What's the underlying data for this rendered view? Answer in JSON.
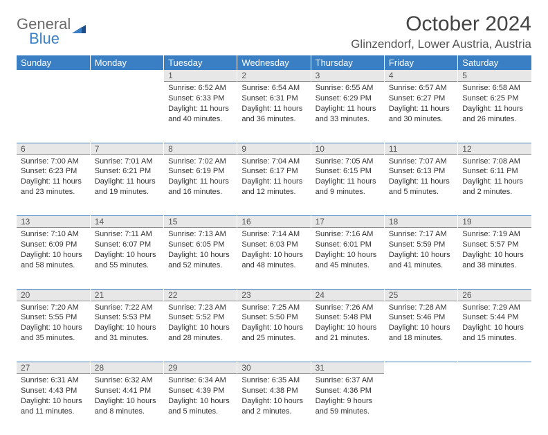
{
  "logo": {
    "general": "General",
    "blue": "Blue"
  },
  "title": "October 2024",
  "location": "Glinzendorf, Lower Austria, Austria",
  "columns": [
    "Sunday",
    "Monday",
    "Tuesday",
    "Wednesday",
    "Thursday",
    "Friday",
    "Saturday"
  ],
  "colors": {
    "header_bg": "#3a7fc4",
    "header_text": "#ffffff",
    "daynum_bg": "#e7e7e7",
    "daynum_border": "#8a8a8a",
    "week_sep": "#3a7fc4",
    "body_text": "#333333"
  },
  "fonts": {
    "title_size": 30,
    "location_size": 17,
    "header_size": 13,
    "daynum_size": 12,
    "cell_size": 11
  },
  "weeks": [
    [
      null,
      null,
      {
        "n": "1",
        "sr": "6:52 AM",
        "ss": "6:33 PM",
        "dl": "11 hours and 40 minutes."
      },
      {
        "n": "2",
        "sr": "6:54 AM",
        "ss": "6:31 PM",
        "dl": "11 hours and 36 minutes."
      },
      {
        "n": "3",
        "sr": "6:55 AM",
        "ss": "6:29 PM",
        "dl": "11 hours and 33 minutes."
      },
      {
        "n": "4",
        "sr": "6:57 AM",
        "ss": "6:27 PM",
        "dl": "11 hours and 30 minutes."
      },
      {
        "n": "5",
        "sr": "6:58 AM",
        "ss": "6:25 PM",
        "dl": "11 hours and 26 minutes."
      }
    ],
    [
      {
        "n": "6",
        "sr": "7:00 AM",
        "ss": "6:23 PM",
        "dl": "11 hours and 23 minutes."
      },
      {
        "n": "7",
        "sr": "7:01 AM",
        "ss": "6:21 PM",
        "dl": "11 hours and 19 minutes."
      },
      {
        "n": "8",
        "sr": "7:02 AM",
        "ss": "6:19 PM",
        "dl": "11 hours and 16 minutes."
      },
      {
        "n": "9",
        "sr": "7:04 AM",
        "ss": "6:17 PM",
        "dl": "11 hours and 12 minutes."
      },
      {
        "n": "10",
        "sr": "7:05 AM",
        "ss": "6:15 PM",
        "dl": "11 hours and 9 minutes."
      },
      {
        "n": "11",
        "sr": "7:07 AM",
        "ss": "6:13 PM",
        "dl": "11 hours and 5 minutes."
      },
      {
        "n": "12",
        "sr": "7:08 AM",
        "ss": "6:11 PM",
        "dl": "11 hours and 2 minutes."
      }
    ],
    [
      {
        "n": "13",
        "sr": "7:10 AM",
        "ss": "6:09 PM",
        "dl": "10 hours and 58 minutes."
      },
      {
        "n": "14",
        "sr": "7:11 AM",
        "ss": "6:07 PM",
        "dl": "10 hours and 55 minutes."
      },
      {
        "n": "15",
        "sr": "7:13 AM",
        "ss": "6:05 PM",
        "dl": "10 hours and 52 minutes."
      },
      {
        "n": "16",
        "sr": "7:14 AM",
        "ss": "6:03 PM",
        "dl": "10 hours and 48 minutes."
      },
      {
        "n": "17",
        "sr": "7:16 AM",
        "ss": "6:01 PM",
        "dl": "10 hours and 45 minutes."
      },
      {
        "n": "18",
        "sr": "7:17 AM",
        "ss": "5:59 PM",
        "dl": "10 hours and 41 minutes."
      },
      {
        "n": "19",
        "sr": "7:19 AM",
        "ss": "5:57 PM",
        "dl": "10 hours and 38 minutes."
      }
    ],
    [
      {
        "n": "20",
        "sr": "7:20 AM",
        "ss": "5:55 PM",
        "dl": "10 hours and 35 minutes."
      },
      {
        "n": "21",
        "sr": "7:22 AM",
        "ss": "5:53 PM",
        "dl": "10 hours and 31 minutes."
      },
      {
        "n": "22",
        "sr": "7:23 AM",
        "ss": "5:52 PM",
        "dl": "10 hours and 28 minutes."
      },
      {
        "n": "23",
        "sr": "7:25 AM",
        "ss": "5:50 PM",
        "dl": "10 hours and 25 minutes."
      },
      {
        "n": "24",
        "sr": "7:26 AM",
        "ss": "5:48 PM",
        "dl": "10 hours and 21 minutes."
      },
      {
        "n": "25",
        "sr": "7:28 AM",
        "ss": "5:46 PM",
        "dl": "10 hours and 18 minutes."
      },
      {
        "n": "26",
        "sr": "7:29 AM",
        "ss": "5:44 PM",
        "dl": "10 hours and 15 minutes."
      }
    ],
    [
      {
        "n": "27",
        "sr": "6:31 AM",
        "ss": "4:43 PM",
        "dl": "10 hours and 11 minutes."
      },
      {
        "n": "28",
        "sr": "6:32 AM",
        "ss": "4:41 PM",
        "dl": "10 hours and 8 minutes."
      },
      {
        "n": "29",
        "sr": "6:34 AM",
        "ss": "4:39 PM",
        "dl": "10 hours and 5 minutes."
      },
      {
        "n": "30",
        "sr": "6:35 AM",
        "ss": "4:38 PM",
        "dl": "10 hours and 2 minutes."
      },
      {
        "n": "31",
        "sr": "6:37 AM",
        "ss": "4:36 PM",
        "dl": "9 hours and 59 minutes."
      },
      null,
      null
    ]
  ],
  "labels": {
    "sunrise": "Sunrise:",
    "sunset": "Sunset:",
    "daylight": "Daylight:"
  }
}
